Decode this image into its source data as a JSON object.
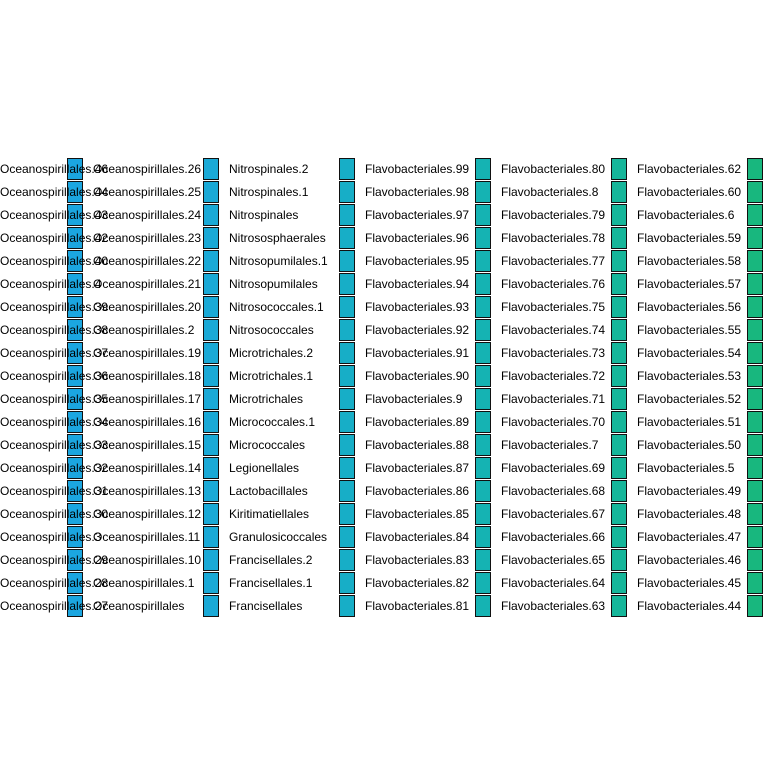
{
  "chart_data": {
    "type": "legend",
    "title": "",
    "columns": [
      {
        "color": "#1ba6e0",
        "label_clipped": true,
        "entries": [
          "Oceanospirillales.46",
          "Oceanospirillales.44",
          "Oceanospirillales.43",
          "Oceanospirillales.42",
          "Oceanospirillales.40",
          "Oceanospirillales.4",
          "Oceanospirillales.39",
          "Oceanospirillales.38",
          "Oceanospirillales.37",
          "Oceanospirillales.36",
          "Oceanospirillales.35",
          "Oceanospirillales.34",
          "Oceanospirillales.33",
          "Oceanospirillales.32",
          "Oceanospirillales.31",
          "Oceanospirillales.30",
          "Oceanospirillales.3",
          "Oceanospirillales.29",
          "Oceanospirillales.28",
          "Oceanospirillales.27"
        ]
      },
      {
        "color": "#1aa9d6",
        "entries": [
          "Oceanospirillales.26",
          "Oceanospirillales.25",
          "Oceanospirillales.24",
          "Oceanospirillales.23",
          "Oceanospirillales.22",
          "Oceanospirillales.21",
          "Oceanospirillales.20",
          "Oceanospirillales.2",
          "Oceanospirillales.19",
          "Oceanospirillales.18",
          "Oceanospirillales.17",
          "Oceanospirillales.16",
          "Oceanospirillales.15",
          "Oceanospirillales.14",
          "Oceanospirillales.13",
          "Oceanospirillales.12",
          "Oceanospirillales.11",
          "Oceanospirillales.10",
          "Oceanospirillales.1",
          "Oceanospirillales"
        ]
      },
      {
        "color": "#17aec7",
        "entries": [
          "Nitrospinales.2",
          "Nitrospinales.1",
          "Nitrospinales",
          "Nitrososphaerales",
          "Nitrosopumilales.1",
          "Nitrosopumilales",
          "Nitrosococcales.1",
          "Nitrosococcales",
          "Microtrichales.2",
          "Microtrichales.1",
          "Microtrichales",
          "Micrococcales.1",
          "Micrococcales",
          "Legionellales",
          "Lactobacillales",
          "Kiritimatiellales",
          "Granulosicoccales",
          "Francisellales.2",
          "Francisellales.1",
          "Francisellales"
        ]
      },
      {
        "color": "#15b3b3",
        "entries": [
          "Flavobacteriales.99",
          "Flavobacteriales.98",
          "Flavobacteriales.97",
          "Flavobacteriales.96",
          "Flavobacteriales.95",
          "Flavobacteriales.94",
          "Flavobacteriales.93",
          "Flavobacteriales.92",
          "Flavobacteriales.91",
          "Flavobacteriales.90",
          "Flavobacteriales.9",
          "Flavobacteriales.89",
          "Flavobacteriales.88",
          "Flavobacteriales.87",
          "Flavobacteriales.86",
          "Flavobacteriales.85",
          "Flavobacteriales.84",
          "Flavobacteriales.83",
          "Flavobacteriales.82",
          "Flavobacteriales.81"
        ]
      },
      {
        "color": "#16b69a",
        "entries": [
          "Flavobacteriales.80",
          "Flavobacteriales.8",
          "Flavobacteriales.79",
          "Flavobacteriales.78",
          "Flavobacteriales.77",
          "Flavobacteriales.76",
          "Flavobacteriales.75",
          "Flavobacteriales.74",
          "Flavobacteriales.73",
          "Flavobacteriales.72",
          "Flavobacteriales.71",
          "Flavobacteriales.70",
          "Flavobacteriales.7",
          "Flavobacteriales.69",
          "Flavobacteriales.68",
          "Flavobacteriales.67",
          "Flavobacteriales.66",
          "Flavobacteriales.65",
          "Flavobacteriales.64",
          "Flavobacteriales.63"
        ]
      },
      {
        "color": "#18b77e",
        "entries": [
          "Flavobacteriales.62",
          "Flavobacteriales.60",
          "Flavobacteriales.6",
          "Flavobacteriales.59",
          "Flavobacteriales.58",
          "Flavobacteriales.57",
          "Flavobacteriales.56",
          "Flavobacteriales.55",
          "Flavobacteriales.54",
          "Flavobacteriales.53",
          "Flavobacteriales.52",
          "Flavobacteriales.51",
          "Flavobacteriales.50",
          "Flavobacteriales.5",
          "Flavobacteriales.49",
          "Flavobacteriales.48",
          "Flavobacteriales.47",
          "Flavobacteriales.46",
          "Flavobacteriales.45",
          "Flavobacteriales.44"
        ]
      }
    ]
  }
}
